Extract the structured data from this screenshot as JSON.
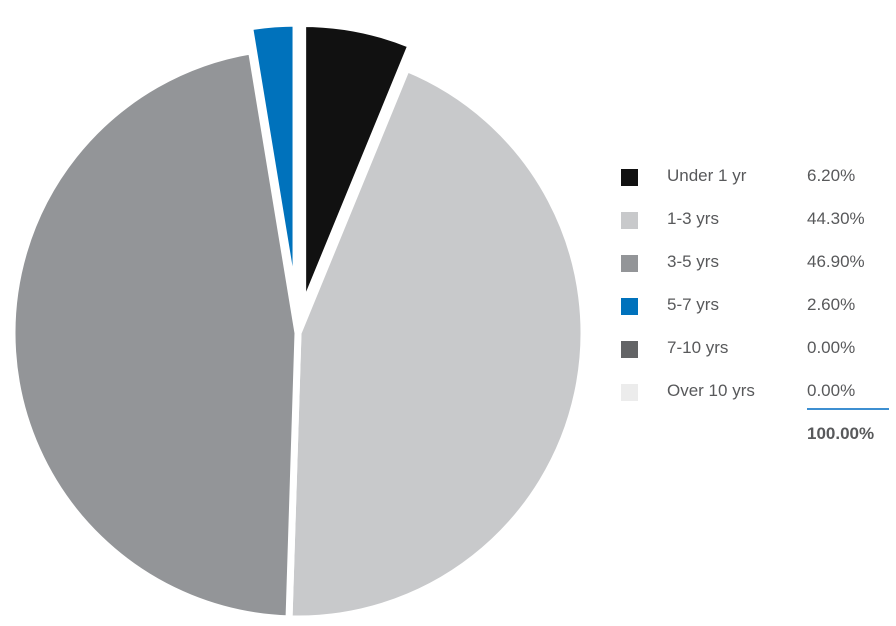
{
  "chart_data": {
    "type": "pie",
    "title": "",
    "slices": [
      {
        "label": "Under 1 yr",
        "value": 6.2,
        "display": "6.20%",
        "color": "#111111",
        "exploded": true
      },
      {
        "label": "1-3 yrs",
        "value": 44.3,
        "display": "44.30%",
        "color": "#c8c9cb",
        "exploded": false
      },
      {
        "label": "3-5 yrs",
        "value": 46.9,
        "display": "46.90%",
        "color": "#939598",
        "exploded": false
      },
      {
        "label": "5-7 yrs",
        "value": 2.6,
        "display": "2.60%",
        "color": "#0072bc",
        "exploded": true
      },
      {
        "label": "7-10 yrs",
        "value": 0.0,
        "display": "0.00%",
        "color": "#636466",
        "exploded": false
      },
      {
        "label": "Over 10 yrs",
        "value": 0.0,
        "display": "0.00%",
        "color": "#ececec",
        "exploded": false
      }
    ],
    "total_display": "100.00%",
    "legend_position": "right"
  }
}
